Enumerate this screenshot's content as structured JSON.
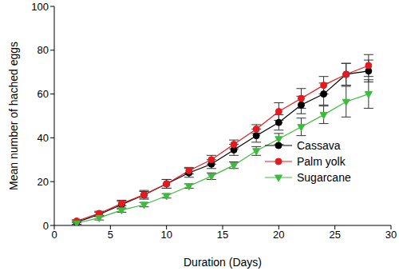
{
  "chart_data": {
    "type": "line",
    "x_label": "Duration (Days)",
    "y_label": "Mean number of hached eggs",
    "xlim": [
      0,
      30
    ],
    "xticks": [
      0,
      5,
      10,
      15,
      20,
      25,
      30
    ],
    "ylim": [
      0,
      100
    ],
    "yticks": [
      0,
      20,
      40,
      60,
      80,
      100
    ],
    "grid": false,
    "legend": "lower right",
    "x": [
      2,
      4,
      6,
      8,
      10,
      12,
      14,
      16,
      18,
      20,
      22,
      24,
      26,
      28
    ],
    "series": [
      {
        "name": "Cassava",
        "color": "#000000",
        "marker": "circle",
        "values": [
          1.5,
          5,
          9.5,
          14,
          19,
          24,
          28,
          34.5,
          41,
          47,
          55,
          60,
          69,
          70.5
        ],
        "errors": [
          1,
          1,
          2,
          2,
          2,
          2,
          2,
          2.5,
          3,
          3.5,
          4,
          5,
          5,
          5
        ]
      },
      {
        "name": "Palm yolk",
        "color": "#e8191d",
        "marker": "circle",
        "values": [
          2,
          5.5,
          10,
          14,
          19,
          25,
          30,
          37,
          44,
          52,
          58,
          64,
          69,
          73
        ],
        "errors": [
          0.5,
          1,
          1,
          1.5,
          2,
          1.5,
          2,
          2,
          2,
          4,
          4.5,
          4,
          5,
          5
        ]
      },
      {
        "name": "Sugarcane",
        "color": "#3dbb3d",
        "marker": "triangle-down",
        "values": [
          1,
          3.5,
          7,
          9.5,
          13.5,
          18,
          22.5,
          27.5,
          34,
          39.5,
          45,
          50.5,
          56.5,
          60
        ],
        "errors": [
          0.5,
          1,
          1,
          1,
          1,
          1,
          1.5,
          1.5,
          2,
          2.5,
          4,
          4,
          7,
          6.5
        ]
      }
    ]
  }
}
